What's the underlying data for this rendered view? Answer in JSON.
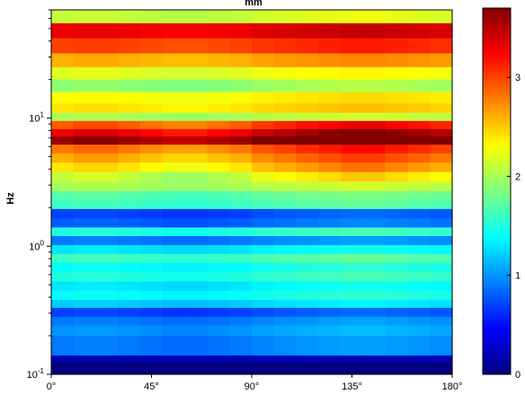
{
  "chart_data": {
    "type": "heatmap",
    "title": "mm",
    "xlabel": "",
    "ylabel": "Hz",
    "x_scale": "linear",
    "y_scale": "log",
    "xlim": [
      0,
      180
    ],
    "ylim": [
      0.1,
      70
    ],
    "x_ticks": [
      "0°",
      "45°",
      "90°",
      "135°",
      "180°"
    ],
    "x_tick_values": [
      0,
      45,
      90,
      135,
      180
    ],
    "y_ticks": [
      {
        "base": "10",
        "exp": "-1",
        "value": 0.1
      },
      {
        "base": "10",
        "exp": "0",
        "value": 1
      },
      {
        "base": "10",
        "exp": "1",
        "value": 10
      }
    ],
    "colorbar": {
      "colormap": "jet",
      "range": [
        0,
        3.7
      ],
      "ticks": [
        "0",
        "1",
        "2",
        "3"
      ],
      "tick_values": [
        0,
        1,
        2,
        3
      ]
    },
    "x_bins": 18,
    "y_bins_hz": [
      70,
      55,
      42,
      32,
      25,
      20,
      16,
      13,
      11,
      9.5,
      8.2,
      7.2,
      6.2,
      5.3,
      4.5,
      3.8,
      3.2,
      2.7,
      2.3,
      1.95,
      1.65,
      1.4,
      1.2,
      1.02,
      0.87,
      0.74,
      0.63,
      0.53,
      0.45,
      0.38,
      0.33,
      0.28,
      0.24,
      0.2,
      0.17,
      0.14,
      0.125,
      0.1
    ],
    "profile_hz": [
      2.1,
      3.3,
      3.0,
      2.6,
      2.2,
      1.9,
      2.3,
      2.4,
      2.0,
      2.9,
      3.3,
      3.6,
      2.8,
      2.6,
      2.4,
      2.1,
      2.0,
      1.7,
      1.6,
      0.7,
      0.8,
      1.5,
      0.9,
      1.3,
      1.6,
      1.4,
      1.5,
      1.3,
      1.4,
      1.2,
      0.7,
      0.9,
      1.0,
      0.9,
      0.9,
      0.2,
      0.0
    ],
    "angle_modulation_deg": [
      0,
      10,
      20,
      30,
      40,
      50,
      60,
      70,
      80,
      90,
      100,
      110,
      120,
      130,
      140,
      150,
      160,
      170
    ],
    "angle_modulation": [
      0.0,
      0.05,
      0.05,
      0.0,
      -0.05,
      -0.1,
      -0.1,
      -0.05,
      0.0,
      0.1,
      0.15,
      0.2,
      0.25,
      0.3,
      0.3,
      0.25,
      0.2,
      0.15
    ]
  }
}
